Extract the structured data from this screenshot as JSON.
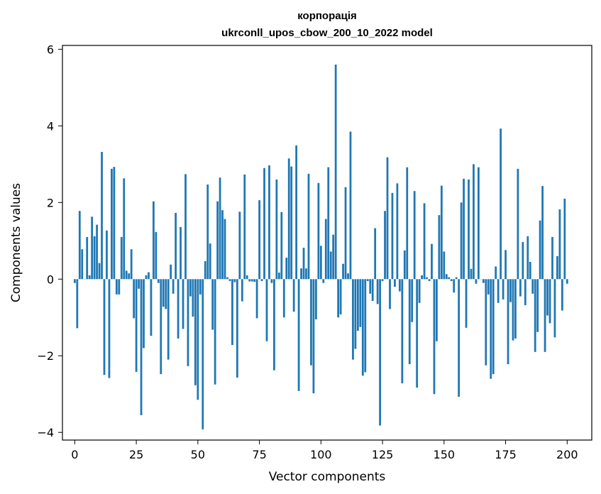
{
  "chart_data": {
    "type": "bar",
    "title": "корпорація",
    "subtitle": "ukrconll_upos_cbow_200_10_2022 model",
    "xlabel": "Vector components",
    "ylabel": "Components values",
    "xlim": [
      -5,
      210
    ],
    "ylim": [
      -4.2,
      6.1
    ],
    "xticks": [
      0,
      25,
      50,
      75,
      100,
      125,
      150,
      175,
      200
    ],
    "yticks": [
      -4,
      -2,
      0,
      2,
      4,
      6
    ],
    "ytick_labels": [
      "−4",
      "−2",
      "0",
      "2",
      "4",
      "6"
    ],
    "grid": false,
    "bar_color": "#1f77b4",
    "values": [
      -0.1,
      -1.28,
      1.78,
      0.78,
      0.0,
      1.1,
      0.1,
      1.63,
      1.12,
      1.42,
      0.42,
      3.32,
      -2.5,
      1.27,
      -2.58,
      2.88,
      2.93,
      -0.4,
      -0.4,
      1.1,
      2.63,
      0.22,
      0.15,
      0.78,
      -1.02,
      -2.42,
      -0.25,
      -3.55,
      -1.8,
      0.1,
      0.18,
      -1.48,
      2.03,
      1.23,
      -0.1,
      -2.48,
      -0.72,
      -0.78,
      -2.1,
      0.38,
      -0.38,
      1.73,
      -1.55,
      1.36,
      -1.3,
      2.74,
      -2.27,
      -0.45,
      -0.98,
      -2.77,
      -3.15,
      -0.4,
      -3.92,
      0.47,
      2.47,
      0.93,
      -1.32,
      -2.75,
      2.03,
      2.65,
      1.8,
      1.57,
      0.05,
      -0.05,
      -1.72,
      -0.08,
      -2.57,
      1.76,
      -0.58,
      2.73,
      0.1,
      -0.06,
      -0.06,
      -0.07,
      -1.02,
      2.06,
      -0.05,
      2.9,
      -1.62,
      2.97,
      -0.1,
      -2.38,
      2.6,
      0.17,
      1.75,
      -1.0,
      0.56,
      3.15,
      2.94,
      -0.85,
      3.49,
      -2.92,
      0.28,
      0.82,
      0.28,
      2.75,
      -2.25,
      -2.98,
      -1.05,
      2.51,
      0.87,
      -0.1,
      1.57,
      2.92,
      0.72,
      1.16,
      5.6,
      -1.0,
      -0.92,
      0.4,
      2.4,
      0.15,
      3.85,
      -2.1,
      -1.82,
      -1.35,
      -1.25,
      -2.52,
      -2.43,
      -0.05,
      -0.38,
      -0.57,
      1.33,
      -0.65,
      -3.82,
      -0.05,
      1.78,
      3.18,
      -0.78,
      2.25,
      -0.2,
      2.5,
      -0.32,
      -2.72,
      0.75,
      2.92,
      -2.22,
      -1.12,
      2.3,
      -2.83,
      -0.62,
      0.1,
      1.98,
      0.05,
      -0.05,
      0.92,
      -3.0,
      -1.62,
      1.67,
      2.44,
      0.72,
      0.13,
      0.05,
      -0.05,
      -0.35,
      0.05,
      -3.07,
      2.0,
      2.62,
      -1.27,
      2.6,
      0.27,
      3.0,
      -0.12,
      2.92,
      0.0,
      -0.1,
      -2.25,
      -0.4,
      -2.6,
      -2.48,
      0.33,
      -0.62,
      3.93,
      -0.53,
      0.76,
      -2.22,
      -0.6,
      -1.6,
      -1.55,
      2.88,
      -0.45,
      0.97,
      -0.68,
      1.12,
      0.45,
      -0.38,
      -1.9,
      -1.38,
      1.53,
      2.43,
      -1.9,
      -0.95,
      -1.15,
      1.1,
      -1.52,
      0.6,
      1.82,
      -0.82,
      2.1,
      -0.12
    ]
  }
}
